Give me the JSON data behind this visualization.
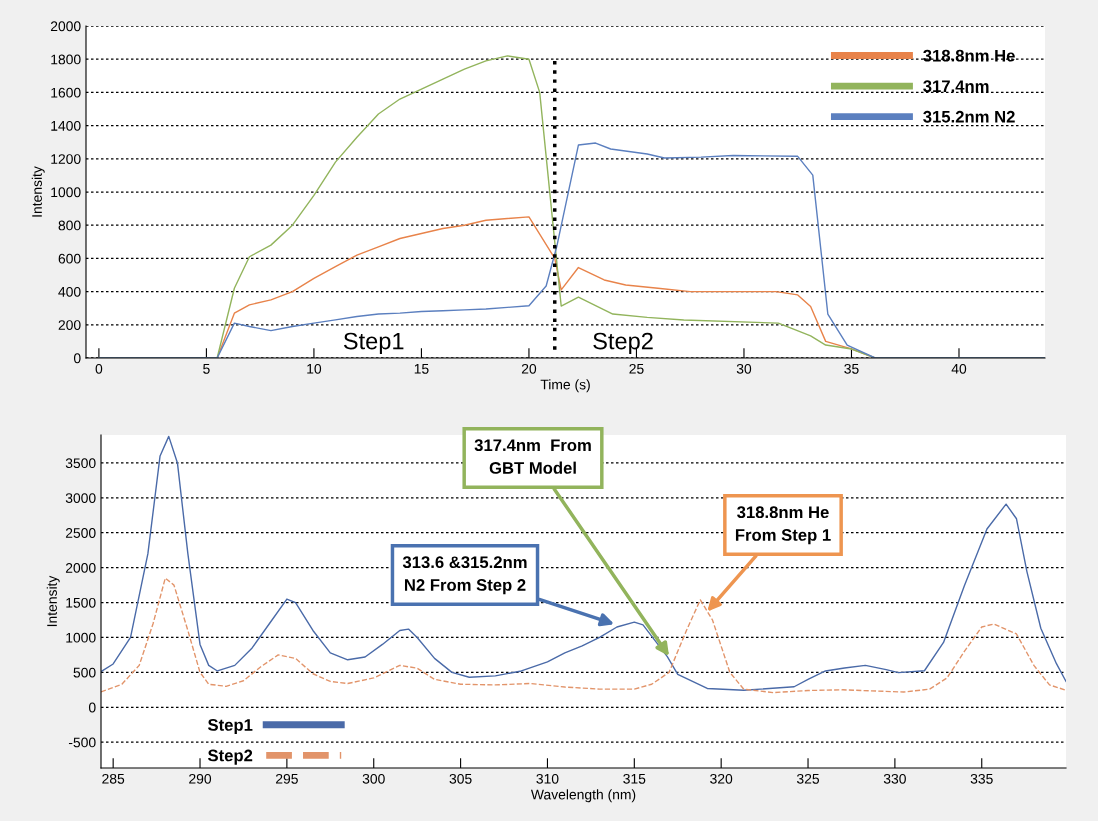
{
  "chart_data": [
    {
      "type": "line",
      "xlabel": "Time (s)",
      "ylabel": "Intensity",
      "xlim": [
        -0.6,
        44
      ],
      "xticks": [
        0,
        5,
        10,
        15,
        20,
        25,
        30,
        35,
        40
      ],
      "ylim": [
        0,
        2000
      ],
      "yticks": [
        0,
        200,
        400,
        600,
        800,
        1000,
        1200,
        1400,
        1600,
        1800,
        2000
      ],
      "grid": "y",
      "legend": "top right",
      "line_style": "solid",
      "marker": "none",
      "ref_lines": [
        {
          "axis": "x",
          "value": 21.2,
          "color": "#000000",
          "line_style": "dotted"
        }
      ],
      "annotations": [
        "Step1",
        "Step2"
      ],
      "series": [
        {
          "name": "318.8nm He",
          "color": "#e8834a",
          "x": [
            0,
            5.5,
            6.3,
            7,
            8,
            9,
            10,
            11,
            12,
            13,
            14,
            15,
            16,
            17,
            18,
            19,
            20,
            21.2,
            21.5,
            22.3,
            23.5,
            24.5,
            26,
            27.5,
            31.5,
            32.5,
            33.1,
            33.8,
            35,
            36.1,
            44
          ],
          "values": [
            0,
            0,
            270,
            320,
            350,
            400,
            480,
            550,
            620,
            670,
            720,
            750,
            780,
            800,
            830,
            840,
            850,
            600,
            410,
            545,
            470,
            440,
            420,
            400,
            400,
            380,
            310,
            100,
            55,
            0,
            0
          ]
        },
        {
          "name": "317.4nm",
          "color": "#92b45c",
          "x": [
            0,
            5.5,
            6.3,
            7,
            8,
            9,
            10,
            11,
            12,
            13,
            14,
            15,
            16,
            17,
            18,
            19,
            20,
            20.5,
            21.5,
            22.3,
            23.9,
            25.5,
            27.2,
            31.6,
            33.1,
            33.8,
            35,
            36.1,
            44
          ],
          "values": [
            0,
            0,
            420,
            610,
            680,
            800,
            980,
            1180,
            1330,
            1470,
            1560,
            1620,
            1680,
            1740,
            1790,
            1820,
            1800,
            1600,
            313,
            367,
            265,
            245,
            229,
            210,
            133,
            78,
            54,
            0,
            0
          ]
        },
        {
          "name": "315.2nm N2",
          "color": "#5b7fbf",
          "x": [
            0,
            5.5,
            6.3,
            7,
            8,
            9,
            10,
            11,
            12,
            13,
            14,
            15,
            16,
            17,
            18,
            19,
            20,
            20.8,
            21.3,
            22.3,
            23.1,
            23.8,
            25.5,
            26.3,
            28,
            29.5,
            32.5,
            33.2,
            33.9,
            34.8,
            36.1,
            44
          ],
          "values": [
            0,
            0,
            210,
            190,
            165,
            190,
            210,
            230,
            250,
            265,
            270,
            280,
            285,
            290,
            295,
            305,
            315,
            434,
            675,
            1283,
            1295,
            1259,
            1229,
            1205,
            1210,
            1220,
            1215,
            1102,
            265,
            78,
            0,
            0
          ]
        }
      ]
    },
    {
      "type": "line",
      "xlabel": "Wavelength (nm)",
      "ylabel": "Intensity",
      "xlim": [
        284.3,
        339.85
      ],
      "xticks": [
        285,
        290,
        295,
        300,
        305,
        310,
        315,
        320,
        325,
        330,
        335
      ],
      "ylim": [
        -870,
        3900
      ],
      "yticks": [
        -500,
        0,
        500,
        1000,
        1500,
        2000,
        2500,
        3000,
        3500
      ],
      "grid": "y",
      "legend": "bottom left",
      "marker": "none",
      "annotations": [
        {
          "text": "313.6 &315.2nm\nN2 From Step 2",
          "x": 313.85,
          "y": 1190
        },
        {
          "text": "317.4nm  From\nGBT Model",
          "x": 317.0,
          "y": 730
        },
        {
          "text": "318.8nm He\nFrom Step 1",
          "x": 319.2,
          "y": 1370
        }
      ],
      "series": [
        {
          "name": "Step1",
          "color": "#4a6aa8",
          "line_style": "solid",
          "x": [
            284.3,
            285,
            286,
            287,
            287.7,
            288.2,
            288.7,
            289.3,
            290,
            290.5,
            291,
            292,
            293,
            294,
            295,
            295.5,
            296.5,
            297.5,
            298.5,
            299.5,
            300.5,
            301.5,
            302,
            302.5,
            303.5,
            304.5,
            305.5,
            307,
            308.5,
            310,
            311,
            312,
            313,
            314,
            315,
            315.5,
            316.9,
            317.5,
            319.2,
            321.3,
            324.2,
            325,
            326,
            327.1,
            328.3,
            329.5,
            330.2,
            331.7,
            332.8,
            334,
            335.3,
            336.4,
            337,
            337.6,
            338.4,
            339.3,
            339.85
          ],
          "values": [
            510,
            620,
            1000,
            2200,
            3600,
            3880,
            3500,
            2200,
            900,
            600,
            520,
            600,
            850,
            1200,
            1550,
            1500,
            1100,
            780,
            680,
            720,
            900,
            1100,
            1120,
            1000,
            700,
            500,
            430,
            450,
            520,
            650,
            780,
            880,
            1000,
            1150,
            1220,
            1180,
            726,
            472,
            269,
            244,
            294,
            400,
            520,
            563,
            600,
            540,
            497,
            523,
            929,
            1741,
            2553,
            2910,
            2700,
            1944,
            1132,
            624,
            370
          ]
        },
        {
          "name": "Step2",
          "color": "#e2946a",
          "line_style": "dashed",
          "x": [
            284.3,
            285.5,
            286.5,
            287.3,
            288,
            288.5,
            289.3,
            290,
            290.5,
            291.5,
            292.5,
            293.5,
            294.5,
            295.5,
            296.5,
            297.5,
            298.5,
            300,
            301.5,
            302.5,
            303.5,
            305,
            307,
            309,
            311,
            313,
            315,
            316,
            317,
            318,
            318.8,
            319.5,
            320.5,
            321.3,
            323,
            325,
            327,
            330.5,
            332,
            333,
            334,
            335,
            335.7,
            337,
            338,
            338.9,
            339.85
          ],
          "values": [
            220,
            330,
            600,
            1200,
            1850,
            1750,
            1100,
            500,
            330,
            300,
            380,
            580,
            750,
            700,
            480,
            370,
            340,
            420,
            600,
            560,
            400,
            330,
            320,
            340,
            290,
            260,
            260,
            330,
            500,
            1100,
            1538,
            1250,
            500,
            259,
            210,
            240,
            250,
            218,
            260,
            420,
            800,
            1150,
            1193,
            1050,
            600,
            320,
            244
          ]
        }
      ]
    }
  ]
}
